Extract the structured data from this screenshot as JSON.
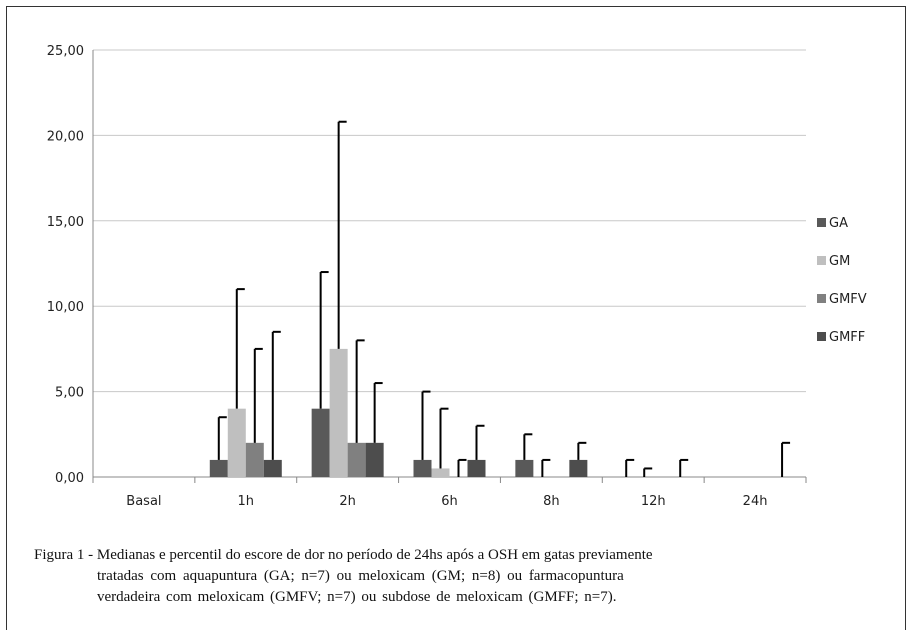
{
  "chart_data": {
    "type": "bar",
    "categories": [
      "Basal",
      "1h",
      "2h",
      "6h",
      "8h",
      "12h",
      "24h"
    ],
    "yticks": [
      "0,00",
      "5,00",
      "10,00",
      "15,00",
      "20,00",
      "25,00"
    ],
    "ylim": [
      0,
      25
    ],
    "grid": true,
    "legend_position": "right",
    "series": [
      {
        "name": "GA",
        "color": "#595959",
        "values": [
          0,
          1,
          4,
          1,
          1,
          0,
          0
        ],
        "upper": [
          0,
          3.5,
          12,
          5,
          2.5,
          1,
          0
        ]
      },
      {
        "name": "GM",
        "color": "#bfbfbf",
        "values": [
          0,
          4,
          7.5,
          0.5,
          0,
          0,
          0
        ],
        "upper": [
          0,
          11,
          20.8,
          4,
          1,
          0.5,
          0
        ]
      },
      {
        "name": "GMFV",
        "color": "#808080",
        "values": [
          0,
          2,
          2,
          0,
          0,
          0,
          0
        ],
        "upper": [
          0,
          7.5,
          8,
          1,
          0,
          0,
          0
        ]
      },
      {
        "name": "GMFF",
        "color": "#4d4d4d",
        "values": [
          0,
          1,
          2,
          1,
          1,
          0,
          0
        ],
        "upper": [
          0,
          8.5,
          5.5,
          3,
          2,
          1,
          2
        ]
      }
    ]
  },
  "caption": {
    "line1": "Figura 1 - Medianas e percentil do escore de dor no período de 24hs após a OSH em gatas previamente",
    "line2": "tratadas com aquapuntura (GA; n=7) ou meloxicam (GM; n=8) ou farmacopuntura",
    "line3": "verdadeira com meloxicam (GMFV; n=7) ou subdose de meloxicam (GMFF; n=7)."
  }
}
